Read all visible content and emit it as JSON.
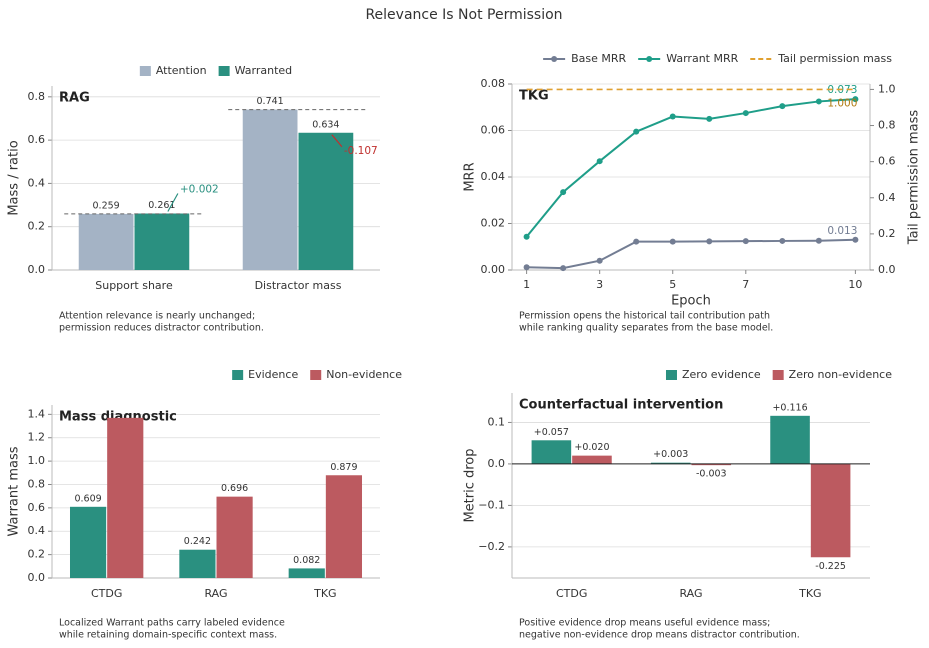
{
  "title": "Relevance Is Not Permission",
  "chart_data": [
    {
      "type": "bar",
      "title": "RAG",
      "ylabel": "Mass / ratio",
      "categories": [
        "Support share",
        "Distractor mass"
      ],
      "series": [
        {
          "name": "Attention",
          "color": "#a4b3c5",
          "values": [
            0.259,
            0.741
          ]
        },
        {
          "name": "Warranted",
          "color": "#2a9080",
          "values": [
            0.261,
            0.634
          ]
        }
      ],
      "ylim": [
        0,
        0.85
      ],
      "yticks": [
        {
          "value": 0,
          "label": "0.0"
        },
        0.2,
        0.4,
        0.6,
        0.8
      ],
      "grid": true,
      "legend": "top",
      "dashed_reference": true,
      "annotations": [
        {
          "text": "+0.002",
          "color": "#2a9080"
        },
        {
          "text": "-0.107",
          "color": "#c0302e"
        }
      ],
      "caption": [
        "Attention relevance is nearly unchanged;",
        "permission reduces distractor contribution."
      ]
    },
    {
      "type": "line",
      "title": "TKG",
      "xlabel": "Epoch",
      "ylabel": "MRR",
      "y2label": "Tail permission mass",
      "x": [
        1,
        2,
        3,
        4,
        5,
        6,
        7,
        8,
        9,
        10
      ],
      "series": [
        {
          "name": "Base MRR",
          "color": "#737d93",
          "values": [
            0.0012,
            0.0008,
            0.004,
            0.0122,
            0.0122,
            0.0123,
            0.0124,
            0.0125,
            0.0126,
            0.013
          ],
          "end_label": "0.013"
        },
        {
          "name": "Warrant MRR",
          "color": "#1f9e89",
          "values": [
            0.0143,
            0.0335,
            0.0468,
            0.0595,
            0.066,
            0.065,
            0.0675,
            0.0705,
            0.0725,
            0.0735
          ],
          "end_label": "0.073"
        },
        {
          "name": "Tail permission mass",
          "color": "#e0a030",
          "axis": "y2",
          "dashed": true,
          "values": [
            1,
            1,
            1,
            1,
            1,
            1,
            1,
            1,
            1,
            1
          ],
          "end_label": "1.000"
        }
      ],
      "xlim": [
        0.6,
        10.4
      ],
      "xticks": [
        1,
        3,
        5,
        7,
        10
      ],
      "ylim": [
        0,
        0.08
      ],
      "yticks": [
        {
          "value": 0,
          "label": "0.00"
        },
        0.02,
        0.04,
        0.06,
        0.08
      ],
      "y2lim": [
        0,
        1.03
      ],
      "y2ticks": [
        {
          "value": 0,
          "label": "0.0"
        },
        0.2,
        0.4,
        0.6,
        0.8,
        {
          "value": 1,
          "label": "1.0"
        }
      ],
      "grid": true,
      "legend": "top-right",
      "caption": [
        "Permission opens the historical tail contribution path",
        "while ranking quality separates from the base model."
      ]
    },
    {
      "type": "bar",
      "title": "Mass diagnostic",
      "ylabel": "Warrant mass",
      "categories": [
        "CTDG",
        "RAG",
        "TKG"
      ],
      "series": [
        {
          "name": "Evidence",
          "color": "#2a9080",
          "values": [
            0.609,
            0.242,
            0.082
          ],
          "value_labels": [
            "0.609",
            "0.242",
            "0.082"
          ]
        },
        {
          "name": "Non-evidence",
          "color": "#bc5a60",
          "values": [
            1.37,
            0.696,
            0.879
          ],
          "value_labels": [
            null,
            "0.696",
            "0.879"
          ]
        }
      ],
      "ylim": [
        0,
        1.48
      ],
      "yticks": [
        {
          "value": 0,
          "label": "0.0"
        },
        0.2,
        0.4,
        0.6,
        0.8,
        {
          "value": 1,
          "label": "1.0"
        },
        1.2,
        1.4
      ],
      "grid": true,
      "legend": "top-right",
      "caption": [
        "Localized Warrant paths carry labeled evidence",
        "while retaining domain-specific context mass."
      ]
    },
    {
      "type": "bar",
      "title": "Counterfactual intervention",
      "ylabel": "Metric drop",
      "categories": [
        "CTDG",
        "RAG",
        "TKG"
      ],
      "series": [
        {
          "name": "Zero evidence",
          "color": "#2a9080",
          "values": [
            0.057,
            0.003,
            0.116
          ],
          "value_labels": [
            "+0.057",
            "+0.003",
            "+0.116"
          ]
        },
        {
          "name": "Zero non-evidence",
          "color": "#bc5a60",
          "values": [
            0.02,
            -0.003,
            -0.225
          ],
          "value_labels": [
            "+0.020",
            "-0.003",
            "-0.225"
          ]
        }
      ],
      "ylim": [
        -0.275,
        0.171
      ],
      "yticks": [
        {
          "value": -0.2,
          "label": "−0.2"
        },
        {
          "value": -0.1,
          "label": "−0.1"
        },
        {
          "value": 0,
          "label": "0.0"
        },
        0.1
      ],
      "grid": true,
      "legend": "top-right",
      "zero_line": true,
      "caption": [
        "Positive evidence drop means useful evidence mass;",
        "negative non-evidence drop means distractor contribution."
      ]
    }
  ]
}
